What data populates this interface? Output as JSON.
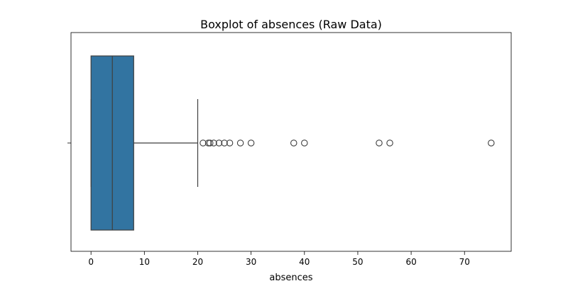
{
  "chart_data": {
    "type": "boxplot",
    "orientation": "horizontal",
    "title": "Boxplot of absences (Raw Data)",
    "xlabel": "absences",
    "ylabel": "",
    "xlim": [
      -3.75,
      78.75
    ],
    "x_ticks": [
      0,
      10,
      20,
      30,
      40,
      50,
      60,
      70
    ],
    "x_tick_labels": [
      "0",
      "10",
      "20",
      "30",
      "40",
      "50",
      "60",
      "70"
    ],
    "box": {
      "whisker_low": 0,
      "q1": 0,
      "median": 4,
      "q3": 8,
      "whisker_high": 20
    },
    "outliers": [
      21,
      22,
      22.3,
      23,
      24,
      25,
      26,
      28,
      30,
      38,
      40,
      54,
      56,
      75
    ],
    "grid": false,
    "legend": "none",
    "colors": {
      "box_fill": "#3274a1",
      "line": "#3f3f3f",
      "outlier_edge": "#3f3f3f"
    }
  }
}
